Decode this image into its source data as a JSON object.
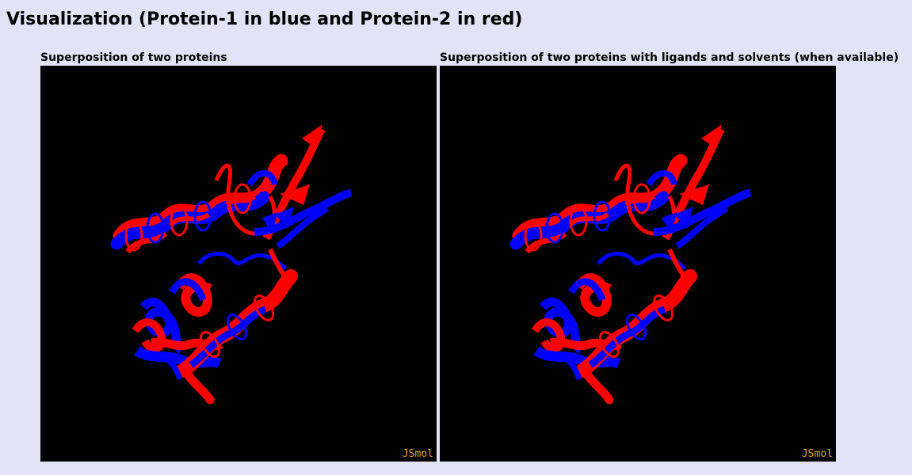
{
  "page": {
    "title": "Visualization (Protein-1 in blue and Protein-2 in red)"
  },
  "panels": [
    {
      "caption": "Superposition of two proteins",
      "viewer_label": "JSmol"
    },
    {
      "caption": "Superposition of two proteins with ligands and solvents (when available)",
      "viewer_label": "JSmol"
    }
  ],
  "colors": {
    "page_background": "#e3e3f7",
    "viewer_background": "#000000",
    "protein_1": "#0000ff",
    "protein_2": "#ff0000",
    "jsmol_label": "#e8a800"
  }
}
